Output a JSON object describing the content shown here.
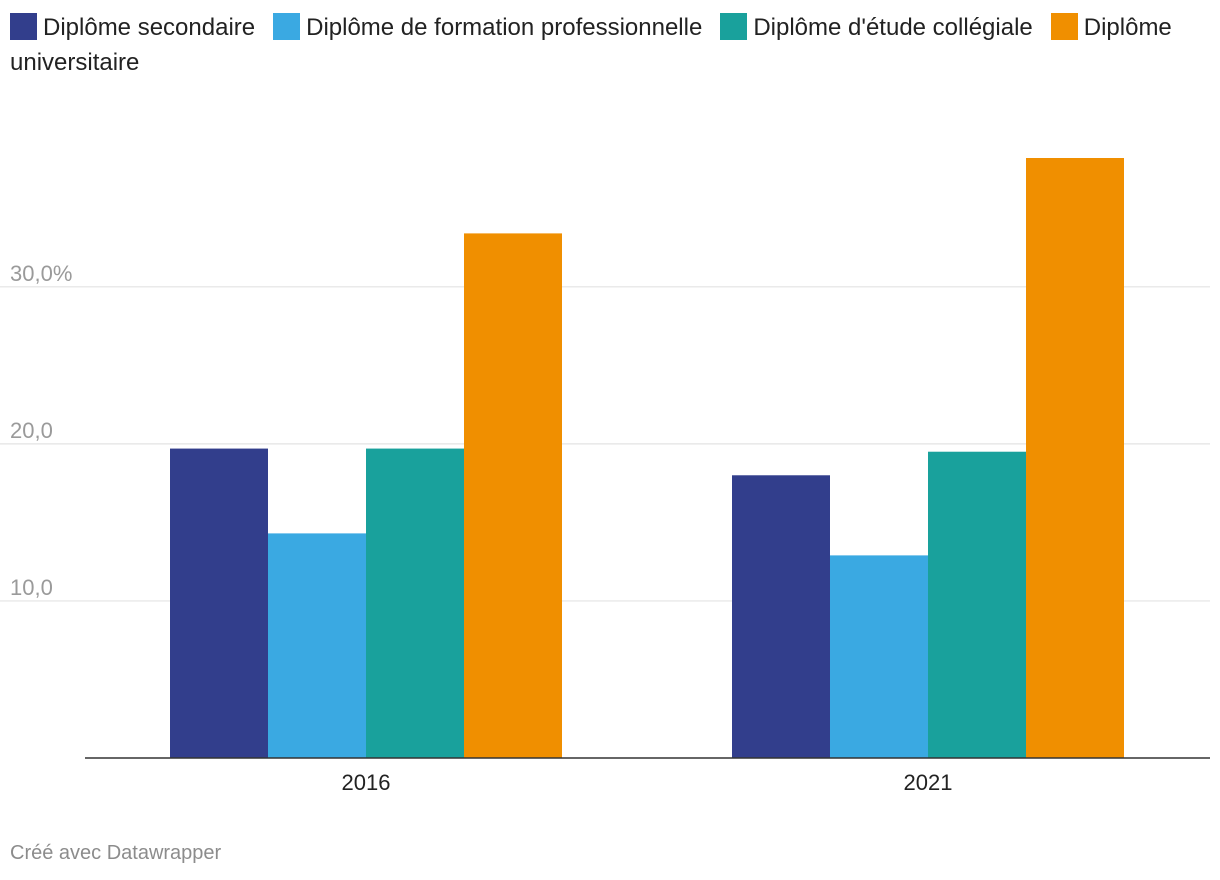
{
  "chart_data": {
    "type": "bar",
    "categories": [
      "2016",
      "2021"
    ],
    "series": [
      {
        "name": "Diplôme secondaire",
        "color": "#323e8c",
        "values": [
          19.7,
          18.0
        ]
      },
      {
        "name": "Diplôme de formation professionnelle",
        "color": "#3aa9e2",
        "values": [
          14.3,
          12.9
        ]
      },
      {
        "name": "Diplôme d'étude collégiale",
        "color": "#19a19c",
        "values": [
          19.7,
          19.5
        ]
      },
      {
        "name": "Diplôme universitaire",
        "color": "#f08f00",
        "values": [
          33.4,
          38.2
        ]
      }
    ],
    "ylim": [
      0,
      38.2
    ],
    "yticks": [
      {
        "value": 10,
        "label": "10,0"
      },
      {
        "value": 20,
        "label": "20,0"
      },
      {
        "value": 30,
        "label": "30,0%"
      }
    ],
    "grid": true,
    "legend_position": "top"
  },
  "footer": {
    "credit": "Créé avec Datawrapper"
  }
}
